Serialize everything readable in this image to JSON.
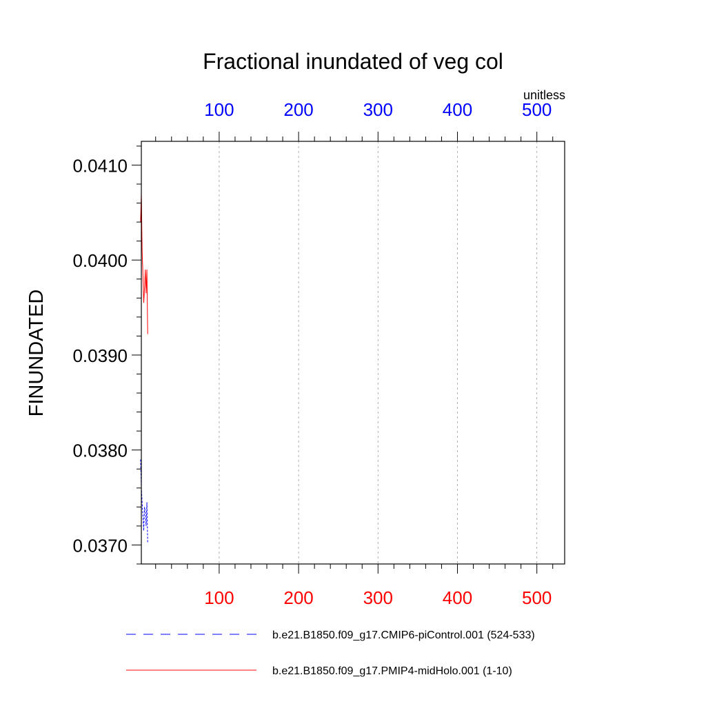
{
  "chart_data": {
    "type": "line",
    "title": "Fractional inundated of veg col",
    "ylabel": "FINUNDATED",
    "units": "unitless",
    "ylim": [
      0.0368,
      0.04125
    ],
    "xlim": [
      2,
      535
    ],
    "yticks": [
      {
        "value": 0.037,
        "label": "0.0370"
      },
      {
        "value": 0.038,
        "label": "0.0380"
      },
      {
        "value": 0.039,
        "label": "0.0390"
      },
      {
        "value": 0.04,
        "label": "0.0400"
      },
      {
        "value": 0.041,
        "label": "0.0410"
      }
    ],
    "xticks_top": [
      {
        "value": 100,
        "label": "100"
      },
      {
        "value": 200,
        "label": "200"
      },
      {
        "value": 300,
        "label": "300"
      },
      {
        "value": 400,
        "label": "400"
      },
      {
        "value": 500,
        "label": "500"
      }
    ],
    "xticks_bottom": [
      {
        "value": 100,
        "label": "100"
      },
      {
        "value": 200,
        "label": "200"
      },
      {
        "value": 300,
        "label": "300"
      },
      {
        "value": 400,
        "label": "400"
      },
      {
        "value": 500,
        "label": "500"
      }
    ],
    "top_axis_color": "#0000ff",
    "bottom_axis_color": "#ff0000",
    "grid": "vertical dashed",
    "series": [
      {
        "name": "b.e21.B1850.f09_g17.CMIP6-piControl.001 (524-533)",
        "color": "#0000ff",
        "dash": "dashed",
        "x": [
          1,
          2,
          3,
          4,
          5,
          6,
          7,
          8,
          9,
          10
        ],
        "y": [
          0.0379,
          0.0376,
          0.03745,
          0.0373,
          0.03715,
          0.0374,
          0.03735,
          0.0372,
          0.03745,
          0.03702
        ]
      },
      {
        "name": "b.e21.B1850.f09_g17.PMIP4-midHolo.001 (1-10)",
        "color": "#ff0000",
        "dash": "solid",
        "x": [
          1,
          2,
          3,
          4,
          5,
          6,
          7,
          8,
          9,
          10
        ],
        "y": [
          0.0404,
          0.0407,
          0.0401,
          0.03985,
          0.03955,
          0.0397,
          0.0399,
          0.03965,
          0.0399,
          0.03922
        ]
      }
    ],
    "legend_position": "bottom"
  }
}
